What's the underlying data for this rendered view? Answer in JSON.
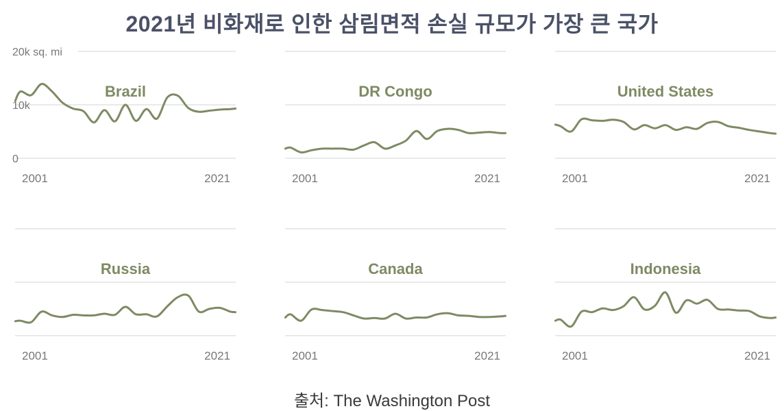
{
  "title": "2021년 비화재로 인한 삼림면적 손실 규모가 가장 큰 국가",
  "source": "출처: The Washington Post",
  "colors": {
    "line": "#7e8a63",
    "title": "#4a5167",
    "grid": "#dcdcdc"
  },
  "chart_data": [
    {
      "type": "line",
      "title": "Brazil",
      "x_ticks": [
        "2001",
        "2021"
      ],
      "y_ticks": [
        "0",
        "10k",
        "20k sq. mi"
      ],
      "ylim": [
        0,
        20000
      ],
      "xlim": [
        2001,
        2021
      ],
      "grid": true,
      "series": [
        {
          "x": [
            2000.5,
            2001,
            2002,
            2003,
            2004,
            2005,
            2006,
            2007,
            2008,
            2009,
            2010,
            2011,
            2012,
            2013,
            2014,
            2015,
            2016,
            2017,
            2018,
            2019,
            2020,
            2021,
            2021.5
          ],
          "y": [
            10800,
            12500,
            11800,
            13900,
            12500,
            10400,
            9300,
            8800,
            6700,
            9000,
            6900,
            10000,
            7000,
            9200,
            7400,
            11400,
            11700,
            9400,
            8700,
            8900,
            9100,
            9200,
            9300
          ]
        }
      ]
    },
    {
      "type": "line",
      "title": "DR Congo",
      "x_ticks": [
        "2001",
        "2021"
      ],
      "ylim": [
        0,
        20000
      ],
      "xlim": [
        2001,
        2021
      ],
      "grid": true,
      "series": [
        {
          "x": [
            2000.5,
            2001,
            2002,
            2003,
            2004,
            2005,
            2006,
            2007,
            2008,
            2009,
            2010,
            2011,
            2012,
            2013,
            2014,
            2015,
            2016,
            2017,
            2018,
            2019,
            2020,
            2021,
            2021.5
          ],
          "y": [
            1800,
            2000,
            1100,
            1500,
            1800,
            1800,
            1800,
            1600,
            2400,
            3000,
            1800,
            2400,
            3300,
            5100,
            3600,
            5100,
            5500,
            5300,
            4700,
            4800,
            4900,
            4700,
            4700
          ]
        }
      ]
    },
    {
      "type": "line",
      "title": "United States",
      "x_ticks": [
        "2001",
        "2021"
      ],
      "ylim": [
        0,
        20000
      ],
      "xlim": [
        2001,
        2021
      ],
      "grid": true,
      "series": [
        {
          "x": [
            2000.5,
            2001,
            2002,
            2003,
            2004,
            2005,
            2006,
            2007,
            2008,
            2009,
            2010,
            2011,
            2012,
            2013,
            2014,
            2015,
            2016,
            2017,
            2018,
            2019,
            2020,
            2021,
            2021.5
          ],
          "y": [
            6300,
            6000,
            5000,
            7300,
            7100,
            7000,
            7200,
            6800,
            5400,
            6200,
            5600,
            6200,
            5300,
            5800,
            5500,
            6600,
            6800,
            6000,
            5700,
            5300,
            5000,
            4700,
            4600
          ]
        }
      ]
    },
    {
      "type": "line",
      "title": "Russia",
      "x_ticks": [
        "2001",
        "2021"
      ],
      "ylim": [
        0,
        20000
      ],
      "xlim": [
        2001,
        2021
      ],
      "grid": true,
      "series": [
        {
          "x": [
            2000.5,
            2001,
            2002,
            2003,
            2004,
            2005,
            2006,
            2007,
            2008,
            2009,
            2010,
            2011,
            2012,
            2013,
            2014,
            2015,
            2016,
            2017,
            2018,
            2019,
            2020,
            2021,
            2021.5
          ],
          "y": [
            2700,
            2800,
            2500,
            4500,
            3800,
            3500,
            3900,
            3800,
            3800,
            4100,
            3900,
            5400,
            4000,
            4000,
            3600,
            5500,
            7200,
            7500,
            4500,
            5000,
            5200,
            4500,
            4400
          ]
        }
      ]
    },
    {
      "type": "line",
      "title": "Canada",
      "x_ticks": [
        "2001",
        "2021"
      ],
      "ylim": [
        0,
        20000
      ],
      "xlim": [
        2001,
        2021
      ],
      "grid": true,
      "series": [
        {
          "x": [
            2000.5,
            2001,
            2002,
            2003,
            2004,
            2005,
            2006,
            2007,
            2008,
            2009,
            2010,
            2011,
            2012,
            2013,
            2014,
            2015,
            2016,
            2017,
            2018,
            2019,
            2020,
            2021,
            2021.5
          ],
          "y": [
            3400,
            4000,
            2800,
            4900,
            4800,
            4600,
            4400,
            3800,
            3200,
            3300,
            3200,
            4100,
            3200,
            3400,
            3400,
            4000,
            4200,
            3800,
            3700,
            3500,
            3500,
            3600,
            3700
          ]
        }
      ]
    },
    {
      "type": "line",
      "title": "Indonesia",
      "x_ticks": [
        "2001",
        "2021"
      ],
      "ylim": [
        0,
        20000
      ],
      "xlim": [
        2001,
        2021
      ],
      "grid": true,
      "series": [
        {
          "x": [
            2000.5,
            2001,
            2002,
            2003,
            2004,
            2005,
            2006,
            2007,
            2008,
            2009,
            2010,
            2011,
            2012,
            2013,
            2014,
            2015,
            2016,
            2017,
            2018,
            2019,
            2020,
            2021,
            2021.5
          ],
          "y": [
            2800,
            3000,
            1700,
            4500,
            4400,
            5100,
            4800,
            5500,
            7200,
            4900,
            5600,
            8100,
            4300,
            6600,
            6000,
            6700,
            5000,
            4900,
            4700,
            4600,
            3600,
            3300,
            3400
          ]
        }
      ]
    }
  ]
}
